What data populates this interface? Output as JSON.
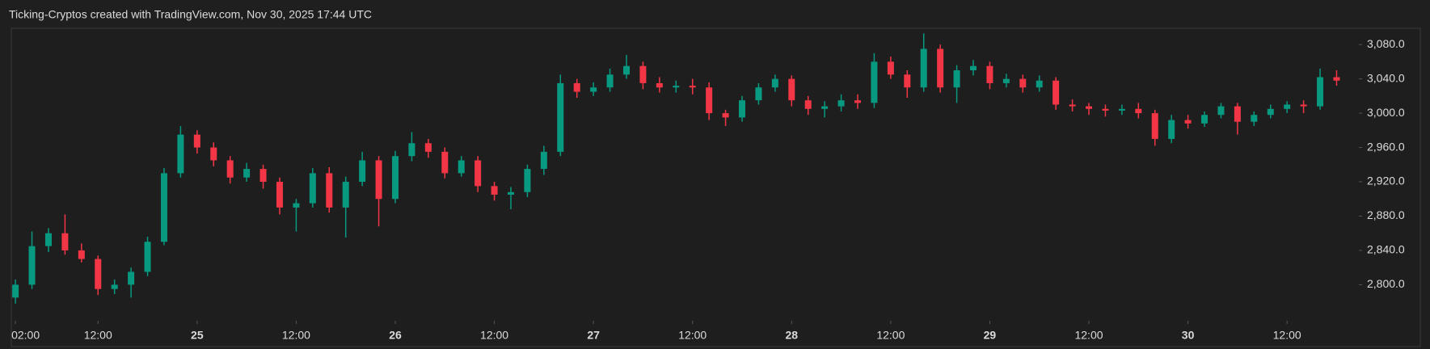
{
  "chart_data": {
    "type": "candlestick",
    "title": "Ticking-Cryptos created with TradingView.com, Nov 30, 2025 17:44 UTC",
    "up_color": "#089981",
    "down_color": "#f23645",
    "x": [
      0,
      2,
      4,
      6,
      8,
      10,
      12,
      14,
      16,
      18,
      20,
      22,
      24,
      26,
      28,
      30,
      32,
      34,
      36,
      38,
      40,
      42,
      44,
      46,
      48,
      50,
      52,
      54,
      56,
      58,
      60,
      62,
      64,
      66,
      68,
      70,
      72,
      74,
      76,
      78,
      80,
      82,
      84,
      86,
      88,
      90,
      92,
      94,
      96,
      98,
      100,
      102,
      104,
      106,
      108,
      110,
      112,
      114,
      116,
      118,
      120,
      122,
      124,
      126,
      128,
      130,
      132,
      134,
      136,
      138,
      140,
      142,
      144,
      146,
      148,
      150,
      152,
      154,
      156,
      158,
      160
    ],
    "open": [
      2785,
      2800,
      2845,
      2860,
      2840,
      2830,
      2795,
      2800,
      2815,
      2850,
      2930,
      2975,
      2960,
      2945,
      2925,
      2935,
      2920,
      2890,
      2895,
      2930,
      2890,
      2920,
      2945,
      2900,
      2950,
      2965,
      2955,
      2930,
      2945,
      2915,
      2905,
      2908,
      2935,
      2955,
      3035,
      3025,
      3030,
      3045,
      3055,
      3035,
      3030,
      3032,
      3030,
      3000,
      2995,
      3015,
      3030,
      3040,
      3015,
      3005,
      3008,
      3015,
      3012,
      3060,
      3045,
      3030,
      3075,
      3030,
      3050,
      3055,
      3035,
      3040,
      3030,
      3038,
      3010,
      3008,
      3005,
      3003,
      3005,
      3000,
      2970,
      2992,
      2988,
      2998,
      3008,
      2990,
      2998,
      3005,
      3010,
      3008,
      3042
    ],
    "high": [
      2806,
      2862,
      2866,
      2882,
      2848,
      2834,
      2806,
      2820,
      2856,
      2936,
      2985,
      2980,
      2966,
      2950,
      2942,
      2940,
      2925,
      2900,
      2936,
      2937,
      2926,
      2955,
      2950,
      2956,
      2978,
      2970,
      2960,
      2950,
      2950,
      2920,
      2914,
      2940,
      2962,
      3045,
      3040,
      3036,
      3052,
      3068,
      3060,
      3042,
      3038,
      3040,
      3036,
      3004,
      3020,
      3035,
      3045,
      3044,
      3020,
      3014,
      3022,
      3022,
      3070,
      3066,
      3050,
      3093,
      3080,
      3056,
      3062,
      3060,
      3046,
      3045,
      3044,
      3042,
      3016,
      3012,
      3010,
      3010,
      3012,
      3004,
      2998,
      2998,
      3002,
      3012,
      3012,
      3002,
      3010,
      3014,
      3015,
      3052,
      3050
    ],
    "low": [
      2778,
      2795,
      2838,
      2835,
      2826,
      2788,
      2789,
      2785,
      2810,
      2846,
      2925,
      2953,
      2938,
      2918,
      2920,
      2912,
      2882,
      2862,
      2890,
      2884,
      2855,
      2915,
      2868,
      2895,
      2944,
      2948,
      2924,
      2926,
      2908,
      2898,
      2888,
      2902,
      2928,
      2950,
      3018,
      3020,
      3025,
      3040,
      3028,
      3024,
      3024,
      3022,
      2992,
      2985,
      2990,
      3010,
      3025,
      3008,
      2998,
      2995,
      3002,
      3005,
      3006,
      3040,
      3018,
      3025,
      3024,
      3012,
      3044,
      3028,
      3030,
      3024,
      3025,
      3004,
      3002,
      2998,
      2996,
      2998,
      2994,
      2962,
      2965,
      2982,
      2984,
      2994,
      2975,
      2985,
      2994,
      3000,
      3000,
      3004,
      3032
    ],
    "close": [
      2800,
      2845,
      2860,
      2840,
      2830,
      2795,
      2800,
      2815,
      2850,
      2930,
      2975,
      2960,
      2945,
      2925,
      2935,
      2920,
      2890,
      2895,
      2930,
      2890,
      2920,
      2945,
      2900,
      2950,
      2965,
      2955,
      2930,
      2945,
      2915,
      2905,
      2908,
      2935,
      2955,
      3035,
      3025,
      3030,
      3045,
      3055,
      3035,
      3030,
      3032,
      3030,
      3000,
      2995,
      3015,
      3030,
      3040,
      3015,
      3005,
      3008,
      3015,
      3012,
      3060,
      3045,
      3030,
      3075,
      3030,
      3050,
      3055,
      3035,
      3040,
      3030,
      3038,
      3010,
      3008,
      3005,
      3003,
      3005,
      3000,
      2970,
      2992,
      2988,
      2998,
      3008,
      2990,
      2998,
      3005,
      3010,
      3008,
      3042,
      3038
    ],
    "xlim": [
      -0.5,
      162.5
    ],
    "xticks": [
      {
        "value": 0,
        "label": "02:00"
      },
      {
        "value": 10,
        "label": "12:00"
      },
      {
        "value": 22,
        "label": "25"
      },
      {
        "value": 34,
        "label": "12:00"
      },
      {
        "value": 46,
        "label": "26"
      },
      {
        "value": 58,
        "label": "12:00"
      },
      {
        "value": 70,
        "label": "27"
      },
      {
        "value": 82,
        "label": "12:00"
      },
      {
        "value": 94,
        "label": "28"
      },
      {
        "value": 106,
        "label": "12:00"
      },
      {
        "value": 118,
        "label": "29"
      },
      {
        "value": 130,
        "label": "12:00"
      },
      {
        "value": 142,
        "label": "30"
      },
      {
        "value": 154,
        "label": "12:00"
      }
    ],
    "ylim": [
      2758,
      3099
    ],
    "yticks": [
      {
        "value": 2800,
        "label": "2,800.0"
      },
      {
        "value": 2840,
        "label": "2,840.0"
      },
      {
        "value": 2880,
        "label": "2,880.0"
      },
      {
        "value": 2920,
        "label": "2,920.0"
      },
      {
        "value": 2960,
        "label": "2,960.0"
      },
      {
        "value": 3000,
        "label": "3,000.0"
      },
      {
        "value": 3040,
        "label": "3,040.0"
      },
      {
        "value": 3080,
        "label": "3,080.0"
      }
    ]
  }
}
